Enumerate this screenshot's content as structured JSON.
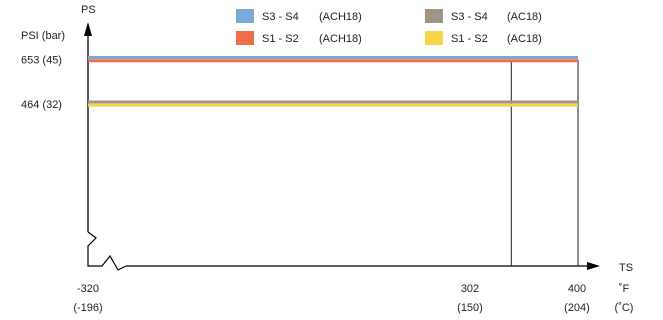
{
  "chart_data": {
    "type": "line",
    "y_axis": {
      "title": "PS",
      "unit_label": "PSI (bar)",
      "ticks": [
        {
          "value": 653,
          "label": "653 (45)"
        },
        {
          "value": 464,
          "label": "464 (32)"
        }
      ]
    },
    "x_axis": {
      "title": "TS",
      "unit_label_f": "˚F",
      "unit_label_c": "(˚C)",
      "range": [
        -320,
        400
      ],
      "ticks": [
        {
          "value": -320,
          "label_f": "-320",
          "label_c": "(-196)"
        },
        {
          "value": 302,
          "label_f": "302",
          "label_c": "(150)"
        },
        {
          "value": 400,
          "label_f": "400",
          "label_c": "(204)"
        }
      ],
      "axis_break": true
    },
    "ylim": [
      0,
      700
    ],
    "grid": false,
    "legend_position": "top",
    "series": [
      {
        "name": "S3 - S4",
        "model": "(ACH18)",
        "color": "#7AA9D8",
        "x": [
          -320,
          400
        ],
        "y": [
          653,
          653
        ]
      },
      {
        "name": "S1 - S2",
        "model": "(ACH18)",
        "color": "#EE6E4A",
        "x": [
          -320,
          400
        ],
        "y": [
          653,
          653
        ]
      },
      {
        "name": "S3 - S4",
        "model": "(AC18)",
        "color": "#A09486",
        "x": [
          -320,
          400
        ],
        "y": [
          464,
          464
        ]
      },
      {
        "name": "S1 - S2",
        "model": "(AC18)",
        "color": "#F7D54A",
        "x": [
          -320,
          400
        ],
        "y": [
          464,
          464
        ]
      }
    ],
    "reference_lines_x": [
      302,
      400
    ]
  }
}
